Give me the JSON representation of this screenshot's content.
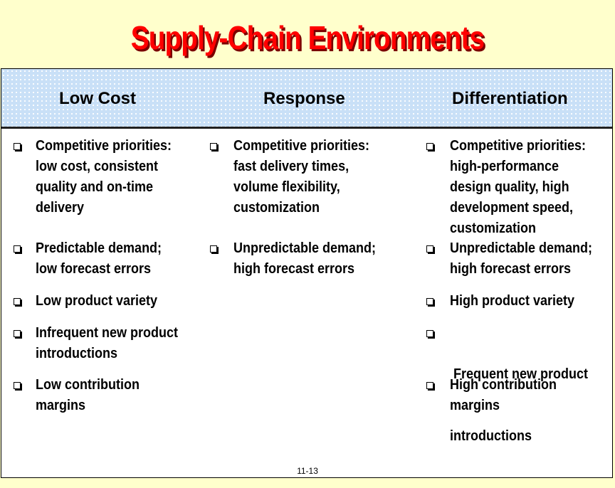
{
  "slide": {
    "title": "Supply-Chain Environments",
    "page_number": "11-13"
  },
  "columns": [
    {
      "heading": "Low Cost",
      "items": [
        {
          "lines": [
            "Competitive priorities:",
            "low cost, consistent",
            "quality and on-time",
            "delivery"
          ]
        },
        {
          "lines": [
            "Predictable demand;",
            "low forecast errors"
          ]
        },
        {
          "lines": [
            "Low product variety"
          ]
        },
        {
          "lines": [
            "Infrequent new product",
            "introductions"
          ]
        },
        {
          "lines": [
            "Low contribution",
            "margins"
          ]
        }
      ]
    },
    {
      "heading": "Response",
      "items": [
        {
          "lines": [
            "Competitive priorities:",
            "fast delivery times,",
            "volume flexibility,",
            "customization"
          ]
        },
        {
          "lines": [
            "Unpredictable demand;",
            "high forecast errors"
          ]
        }
      ]
    },
    {
      "heading": "Differentiation",
      "items": [
        {
          "lines": [
            "Competitive priorities:",
            "high-performance",
            "design quality, high",
            "development speed,",
            "customization"
          ]
        },
        {
          "lines": [
            "Unpredictable demand;",
            "high forecast errors"
          ]
        },
        {
          "lines": [
            "High product variety"
          ]
        },
        {
          "lines": [
            " Frequent new product",
            "introductions"
          ]
        },
        {
          "lines": [
            "High contribution",
            "margins"
          ]
        }
      ]
    }
  ]
}
